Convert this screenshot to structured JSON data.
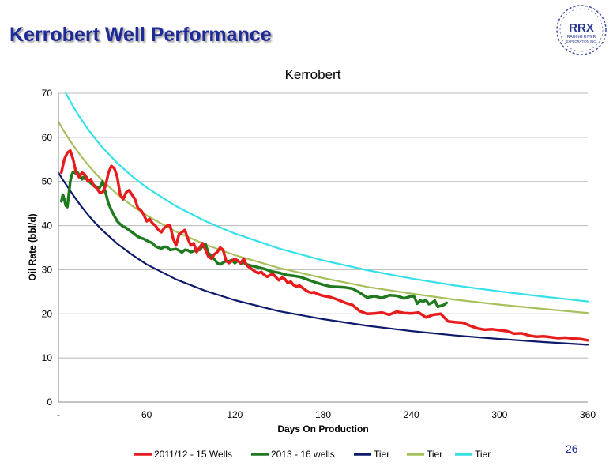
{
  "slide": {
    "title": "Kerrobert Well Performance",
    "page_number": "26",
    "logo": {
      "name": "RRX",
      "line1": "RAGING RIVER",
      "line2": "EXPLORATION INC.",
      "color": "#2a3590"
    }
  },
  "chart_data": {
    "type": "line",
    "title": "Kerrobert",
    "xlabel": "Days On Production",
    "ylabel": "Oil Rate (bbl/d)",
    "xlim": [
      0,
      360
    ],
    "ylim": [
      0,
      70
    ],
    "x_ticks": [
      {
        "value": 0,
        "label": "-"
      },
      {
        "value": 60,
        "label": "60"
      },
      {
        "value": 120,
        "label": "120"
      },
      {
        "value": 180,
        "label": "180"
      },
      {
        "value": 240,
        "label": "240"
      },
      {
        "value": 300,
        "label": "300"
      },
      {
        "value": 360,
        "label": "360"
      }
    ],
    "y_ticks": [
      {
        "value": 0,
        "label": "0"
      },
      {
        "value": 10,
        "label": "10"
      },
      {
        "value": 20,
        "label": "20"
      },
      {
        "value": 30,
        "label": "30"
      },
      {
        "value": 40,
        "label": "40"
      },
      {
        "value": 50,
        "label": "50"
      },
      {
        "value": 60,
        "label": "60"
      },
      {
        "value": 70,
        "label": "70"
      }
    ],
    "grid": "horizontal",
    "legend_position": "bottom",
    "series": [
      {
        "name": "2011/12 - 15 Wells",
        "color": "#e81c1c",
        "width": 3.5,
        "x": [
          2,
          4,
          6,
          8,
          10,
          12,
          14,
          16,
          18,
          20,
          22,
          24,
          26,
          28,
          30,
          32,
          34,
          36,
          38,
          40,
          42,
          44,
          46,
          48,
          50,
          52,
          54,
          56,
          58,
          60,
          62,
          64,
          66,
          68,
          70,
          72,
          74,
          76,
          78,
          80,
          82,
          84,
          86,
          88,
          90,
          92,
          94,
          96,
          98,
          100,
          102,
          104,
          106,
          108,
          110,
          112,
          114,
          116,
          118,
          120,
          122,
          124,
          126,
          128,
          130,
          132,
          134,
          136,
          138,
          140,
          142,
          144,
          146,
          148,
          150,
          152,
          154,
          156,
          158,
          160,
          162,
          164,
          166,
          168,
          170,
          172,
          174,
          176,
          178,
          180,
          185,
          190,
          195,
          200,
          205,
          210,
          215,
          220,
          225,
          230,
          235,
          240,
          245,
          250,
          255,
          260,
          265,
          270,
          275,
          280,
          285,
          290,
          295,
          300,
          305,
          310,
          315,
          320,
          325,
          330,
          335,
          340,
          345,
          350,
          355,
          360
        ],
        "y": [
          52,
          55,
          56.5,
          57,
          55,
          52,
          51,
          52,
          51.5,
          50,
          50.5,
          49,
          48.5,
          47.5,
          47.5,
          49,
          52,
          53.5,
          53,
          51,
          47,
          46,
          47.5,
          48,
          47,
          46,
          44,
          43.5,
          42.5,
          41,
          41.5,
          40.5,
          40,
          39,
          38.5,
          39.5,
          40,
          40,
          37,
          35.5,
          38,
          38.5,
          39,
          37,
          35.5,
          36,
          34,
          35,
          36,
          34.5,
          33,
          32.5,
          33.5,
          34,
          35,
          34.5,
          32,
          31.5,
          32,
          32.5,
          32,
          31.5,
          32.5,
          31,
          30.5,
          30,
          29.5,
          29.2,
          29.5,
          28.8,
          28.4,
          28.8,
          29,
          28.3,
          27.6,
          28.2,
          27.9,
          27,
          27.3,
          26.5,
          26.2,
          26.4,
          25.9,
          25.4,
          25,
          24.8,
          24.9,
          24.5,
          24.3,
          24.1,
          23.8,
          23.2,
          22.5,
          22,
          20.6,
          20,
          20.1,
          20.3,
          19.8,
          20.5,
          20.2,
          20.1,
          20.3,
          19.2,
          19.8,
          20,
          18.3,
          18.1,
          18,
          17.3,
          16.7,
          16.4,
          16.5,
          16.3,
          16.1,
          15.5,
          15.6,
          15.1,
          14.8,
          14.9,
          14.7,
          14.5,
          14.6,
          14.4,
          14.3,
          14
        ]
      },
      {
        "name": "2013 - 16 wells",
        "color": "#1f7a1f",
        "width": 3.5,
        "x": [
          2,
          3,
          4,
          5,
          6,
          7,
          8,
          9,
          10,
          11,
          12,
          13,
          14,
          15,
          16,
          17,
          18,
          19,
          20,
          21,
          22,
          23,
          24,
          25,
          26,
          27,
          28,
          29,
          30,
          32,
          34,
          36,
          38,
          40,
          42,
          44,
          46,
          48,
          50,
          52,
          54,
          56,
          58,
          60,
          62,
          64,
          66,
          68,
          70,
          72,
          74,
          76,
          78,
          80,
          82,
          84,
          86,
          88,
          90,
          92,
          94,
          96,
          98,
          100,
          102,
          104,
          106,
          108,
          110,
          112,
          114,
          116,
          118,
          120,
          122,
          124,
          126,
          128,
          130,
          135,
          140,
          145,
          150,
          155,
          160,
          165,
          170,
          175,
          180,
          185,
          190,
          195,
          200,
          205,
          210,
          215,
          220,
          225,
          230,
          235,
          240,
          242,
          244,
          246,
          248,
          250,
          252,
          254,
          256,
          258,
          260,
          262,
          264
        ],
        "y": [
          45.5,
          47,
          46,
          44.5,
          44.2,
          47,
          50,
          51.5,
          52.2,
          52,
          51.8,
          52,
          51.5,
          51,
          50.5,
          51,
          50.6,
          51,
          50.4,
          50,
          49.6,
          49.4,
          49.2,
          48.9,
          48.8,
          48.5,
          48.6,
          49.2,
          50,
          47.5,
          45,
          43.5,
          42.2,
          41,
          40.3,
          39.8,
          39.5,
          39,
          38.5,
          38,
          37.5,
          37.2,
          37,
          36.6,
          36.3,
          36,
          35.3,
          35,
          34.8,
          35.2,
          35.1,
          34.5,
          34.6,
          34.7,
          34.4,
          33.9,
          34.5,
          34.4,
          34,
          34.2,
          34.7,
          34.5,
          35.3,
          35.8,
          33.8,
          33.1,
          32.4,
          31.5,
          31.2,
          31.6,
          32,
          31.9,
          32.2,
          31.5,
          32.1,
          31.4,
          31.6,
          31.2,
          31,
          30.6,
          30.2,
          29.6,
          29.3,
          28.8,
          28.6,
          28.3,
          27.7,
          27.1,
          26.6,
          26.2,
          26.1,
          26,
          25.7,
          24.8,
          23.7,
          24,
          23.6,
          24.2,
          24.1,
          23.5,
          24,
          23.9,
          22.3,
          23,
          22.8,
          23.1,
          22.2,
          22.5,
          23,
          21.6,
          21.8,
          22,
          22.5
        ]
      },
      {
        "name": "Tier",
        "color": "#0d1a6a",
        "width": 2.2,
        "x": [
          0,
          2.5,
          5,
          10,
          15,
          20,
          25,
          30,
          40,
          50,
          60,
          80,
          100,
          120,
          150,
          180,
          210,
          240,
          270,
          300,
          330,
          360
        ],
        "y": [
          52,
          50.6,
          49.4,
          46.9,
          44.6,
          42.5,
          40.6,
          38.9,
          35.9,
          33.4,
          31.2,
          27.8,
          25.2,
          23.1,
          20.6,
          18.8,
          17.3,
          16.1,
          15.1,
          14.3,
          13.6,
          13
        ]
      },
      {
        "name": "Tier",
        "color": "#a7c05c",
        "width": 2.2,
        "x": [
          0,
          5,
          10,
          15,
          20,
          25,
          30,
          40,
          50,
          60,
          80,
          100,
          120,
          150,
          180,
          210,
          240,
          270,
          300,
          330,
          360
        ],
        "y": [
          63.5,
          60.7,
          58.2,
          55.9,
          53.8,
          51.9,
          50.2,
          47.1,
          44.5,
          42.3,
          38.6,
          35.7,
          33.3,
          30.4,
          28.1,
          26.1,
          24.6,
          23.2,
          22.1,
          21.1,
          20.2
        ]
      },
      {
        "name": "Tier",
        "color": "#35e0e8",
        "width": 2.2,
        "x": [
          5,
          10,
          15,
          20,
          25,
          30,
          40,
          50,
          60,
          80,
          100,
          120,
          150,
          180,
          210,
          240,
          270,
          300,
          330,
          360
        ],
        "y": [
          70,
          67,
          64.3,
          61.9,
          59.7,
          57.7,
          54.2,
          51.2,
          48.6,
          44.4,
          41,
          38.2,
          34.8,
          32.1,
          29.9,
          28,
          26.4,
          25.1,
          23.9,
          22.8
        ]
      }
    ]
  }
}
